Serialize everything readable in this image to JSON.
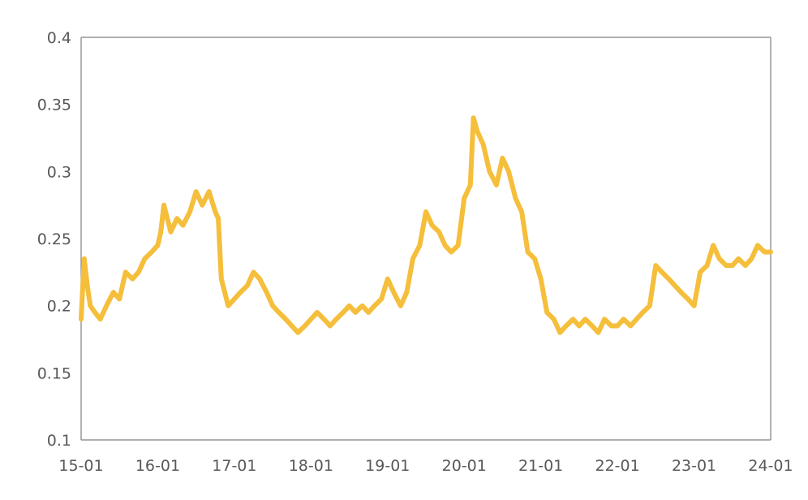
{
  "chart_data": {
    "type": "line",
    "title": "",
    "xlabel": "",
    "ylabel": "",
    "ylim": [
      0.1,
      0.4
    ],
    "grid": false,
    "legend": "none",
    "x_tick_labels": [
      "15-01",
      "16-01",
      "17-01",
      "18-01",
      "19-01",
      "20-01",
      "21-01",
      "22-01",
      "23-01",
      "24-01"
    ],
    "y_tick_labels": [
      "0.1",
      "0.15",
      "0.2",
      "0.25",
      "0.3",
      "0.35",
      "0.4"
    ],
    "y_tick_values": [
      0.1,
      0.15,
      0.2,
      0.25,
      0.3,
      0.35,
      0.4
    ],
    "series": [
      {
        "color": "#F5BE3B",
        "x": [
          2015.0,
          2015.04,
          2015.08,
          2015.12,
          2015.18,
          2015.25,
          2015.33,
          2015.42,
          2015.5,
          2015.58,
          2015.67,
          2015.75,
          2015.83,
          2015.92,
          2016.0,
          2016.04,
          2016.08,
          2016.17,
          2016.25,
          2016.33,
          2016.42,
          2016.5,
          2016.58,
          2016.67,
          2016.75,
          2016.79,
          2016.83,
          2016.92,
          2017.0,
          2017.08,
          2017.17,
          2017.25,
          2017.33,
          2017.42,
          2017.5,
          2017.58,
          2017.67,
          2017.75,
          2017.83,
          2017.92,
          2018.0,
          2018.08,
          2018.17,
          2018.25,
          2018.33,
          2018.42,
          2018.5,
          2018.58,
          2018.67,
          2018.75,
          2018.83,
          2018.92,
          2019.0,
          2019.08,
          2019.17,
          2019.25,
          2019.33,
          2019.42,
          2019.5,
          2019.58,
          2019.67,
          2019.75,
          2019.83,
          2019.92,
          2020.0,
          2020.08,
          2020.12,
          2020.17,
          2020.25,
          2020.33,
          2020.42,
          2020.5,
          2020.58,
          2020.67,
          2020.75,
          2020.83,
          2020.92,
          2021.0,
          2021.08,
          2021.17,
          2021.25,
          2021.33,
          2021.42,
          2021.5,
          2021.58,
          2021.67,
          2021.75,
          2021.83,
          2021.92,
          2022.0,
          2022.08,
          2022.17,
          2022.25,
          2022.33,
          2022.42,
          2022.5,
          2022.58,
          2022.67,
          2022.75,
          2022.83,
          2022.92,
          2023.0,
          2023.08,
          2023.17,
          2023.25,
          2023.33,
          2023.42,
          2023.5,
          2023.58,
          2023.67,
          2023.75,
          2023.83,
          2023.92,
          2024.0
        ],
        "y": [
          0.19,
          0.235,
          0.215,
          0.2,
          0.195,
          0.19,
          0.2,
          0.21,
          0.205,
          0.225,
          0.22,
          0.225,
          0.235,
          0.24,
          0.245,
          0.255,
          0.275,
          0.255,
          0.265,
          0.26,
          0.27,
          0.285,
          0.275,
          0.285,
          0.27,
          0.265,
          0.22,
          0.2,
          0.205,
          0.21,
          0.215,
          0.225,
          0.22,
          0.21,
          0.2,
          0.195,
          0.19,
          0.185,
          0.18,
          0.185,
          0.19,
          0.195,
          0.19,
          0.185,
          0.19,
          0.195,
          0.2,
          0.195,
          0.2,
          0.195,
          0.2,
          0.205,
          0.22,
          0.21,
          0.2,
          0.21,
          0.235,
          0.245,
          0.27,
          0.26,
          0.255,
          0.245,
          0.24,
          0.245,
          0.28,
          0.29,
          0.34,
          0.33,
          0.32,
          0.3,
          0.29,
          0.31,
          0.3,
          0.28,
          0.27,
          0.24,
          0.235,
          0.22,
          0.195,
          0.19,
          0.18,
          0.185,
          0.19,
          0.185,
          0.19,
          0.185,
          0.18,
          0.19,
          0.185,
          0.185,
          0.19,
          0.185,
          0.19,
          0.195,
          0.2,
          0.23,
          0.225,
          0.22,
          0.215,
          0.21,
          0.205,
          0.2,
          0.225,
          0.23,
          0.245,
          0.235,
          0.23,
          0.23,
          0.235,
          0.23,
          0.235,
          0.245,
          0.24,
          0.24
        ]
      }
    ]
  }
}
